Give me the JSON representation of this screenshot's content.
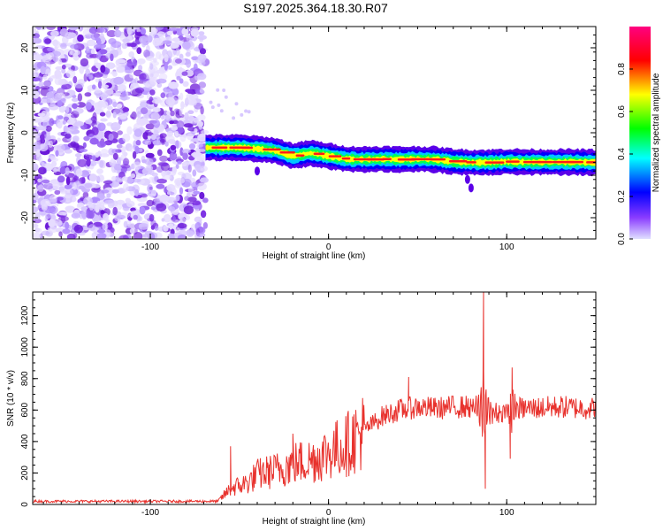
{
  "title": "S197.2025.364.18.30.R07",
  "chart_data": [
    {
      "id": "spectrogram",
      "type": "heatmap",
      "xlabel": "Height of straight line (km)",
      "ylabel": "Frequency (Hz)",
      "xlim": [
        -166,
        150
      ],
      "ylim": [
        -25,
        25
      ],
      "xticks": [
        -100,
        0,
        100
      ],
      "xtick_labels": [
        "-100",
        "0",
        "100"
      ],
      "yticks": [
        -20,
        -10,
        0,
        10,
        20
      ],
      "ytick_labels": [
        "-20",
        "-10",
        "0",
        "10",
        "20"
      ],
      "noise_region_x": [
        -166,
        -69
      ],
      "ridge": {
        "x": [
          -69,
          -60,
          -50,
          -40,
          -30,
          -20,
          -10,
          0,
          10,
          20,
          30,
          40,
          50,
          60,
          70,
          80,
          90,
          100,
          110,
          120,
          130,
          140,
          150
        ],
        "freq": [
          -3.5,
          -3.5,
          -3.5,
          -3.8,
          -4.2,
          -5.5,
          -4.8,
          -5.5,
          -6.2,
          -6.3,
          -6.2,
          -6.3,
          -6.2,
          -6.3,
          -6.8,
          -7.0,
          -7.0,
          -6.8,
          -6.9,
          -6.9,
          -6.9,
          -6.9,
          -7.0
        ]
      },
      "colorbar": {
        "label": "Normalized spectral amplitude",
        "range": [
          0,
          1
        ],
        "ticks": [
          0.0,
          0.2,
          0.4,
          0.6,
          0.8
        ],
        "tick_labels": [
          "0.0",
          "0.2",
          "0.4",
          "0.6",
          "0.8"
        ],
        "colors": [
          "#c8c8ff",
          "#6a00ff",
          "#0000ff",
          "#00ffff",
          "#00ff00",
          "#ffff00",
          "#ff0000",
          "#ff0080"
        ]
      }
    },
    {
      "id": "snr",
      "type": "line",
      "xlabel": "Height of straight line (km)",
      "ylabel": "SNR (10 * v/v)",
      "xlim": [
        -166,
        150
      ],
      "ylim": [
        0,
        1350
      ],
      "xticks": [
        -100,
        0,
        100
      ],
      "xtick_labels": [
        "-100",
        "0",
        "100"
      ],
      "yticks": [
        0,
        200,
        400,
        600,
        800,
        1000,
        1200
      ],
      "ytick_labels": [
        "0",
        "200",
        "400",
        "600",
        "800",
        "1000",
        "1200"
      ],
      "color": "#e8322d",
      "envelope": {
        "x": [
          -166,
          -62,
          -55,
          -45,
          -40,
          -30,
          -20,
          -10,
          0,
          10,
          20,
          30,
          40,
          50,
          60,
          70,
          80,
          85,
          87,
          89,
          95,
          100,
          105,
          110,
          120,
          130,
          140,
          150
        ],
        "snr": [
          20,
          20,
          100,
          140,
          190,
          215,
          260,
          280,
          330,
          380,
          470,
          560,
          600,
          620,
          610,
          620,
          620,
          600,
          640,
          600,
          580,
          600,
          610,
          610,
          615,
          620,
          615,
          610
        ]
      },
      "spikes": [
        {
          "x": 87,
          "snr": 1350
        },
        {
          "x": 88,
          "snr": 100
        },
        {
          "x": 103,
          "snr": 870
        },
        {
          "x": 102,
          "snr": 290
        },
        {
          "x": 45,
          "snr": 810
        },
        {
          "x": -20,
          "snr": 450
        },
        {
          "x": -55,
          "snr": 370
        }
      ]
    }
  ]
}
